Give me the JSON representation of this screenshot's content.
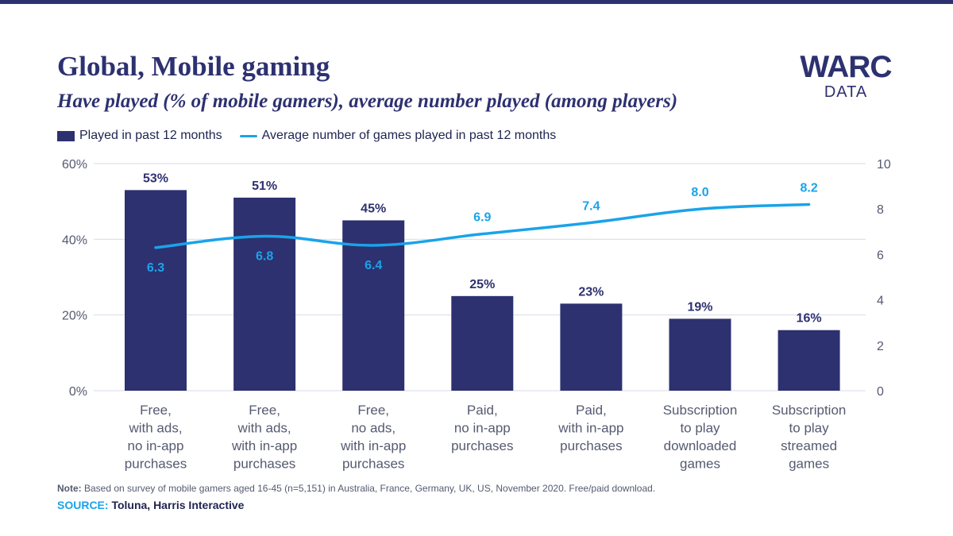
{
  "header": {
    "title": "Global, Mobile gaming",
    "subtitle": "Have played (% of mobile gamers), average number played (among players)"
  },
  "logo": {
    "main": "WARC",
    "sub": "DATA"
  },
  "footer": {
    "note_label": "Note:",
    "note_text": " Based on survey of mobile gamers aged 16-45 (n=5,151) in Australia, France, Germany, UK, US, November 2020. Free/paid download.",
    "source_label": "SOURCE:",
    "source_text": " Toluna, Harris Interactive"
  },
  "colors": {
    "bar": "#2d3170",
    "line": "#1aa3ea",
    "grid": "#d9dbe8",
    "axis_text": "#555a70"
  },
  "chart_data": {
    "type": "bar",
    "categories": [
      [
        "Free,",
        "with ads,",
        "no in-app",
        "purchases"
      ],
      [
        "Free,",
        "with ads,",
        "with in-app",
        "purchases"
      ],
      [
        "Free,",
        "no ads,",
        "with in-app",
        "purchases"
      ],
      [
        "Paid,",
        "no in-app",
        "purchases"
      ],
      [
        "Paid,",
        "with in-app",
        "purchases"
      ],
      [
        "Subscription",
        "to play",
        "downloaded",
        "games"
      ],
      [
        "Subscription",
        "to play",
        "streamed",
        "games"
      ]
    ],
    "series": [
      {
        "name": "Played in past 12 months",
        "type": "bar",
        "axis": "left",
        "values": [
          53,
          51,
          45,
          25,
          23,
          19,
          16
        ],
        "labels": [
          "53%",
          "51%",
          "45%",
          "25%",
          "23%",
          "19%",
          "16%"
        ]
      },
      {
        "name": "Average number of games played in past 12 months",
        "type": "line",
        "axis": "right",
        "values": [
          6.3,
          6.8,
          6.4,
          6.9,
          7.4,
          8.0,
          8.2
        ],
        "labels": [
          "6.3",
          "6.8",
          "6.4",
          "6.9",
          "7.4",
          "8.0",
          "8.2"
        ]
      }
    ],
    "y_left": {
      "lim": [
        0,
        60
      ],
      "ticks": [
        0,
        20,
        40,
        60
      ],
      "tick_labels": [
        "0%",
        "20%",
        "40%",
        "60%"
      ]
    },
    "y_right": {
      "lim": [
        0,
        10
      ],
      "ticks": [
        0,
        2,
        4,
        6,
        8,
        10
      ],
      "tick_labels": [
        "0",
        "2",
        "4",
        "6",
        "8",
        "10"
      ]
    },
    "grid": true,
    "legend_position": "top-left"
  }
}
